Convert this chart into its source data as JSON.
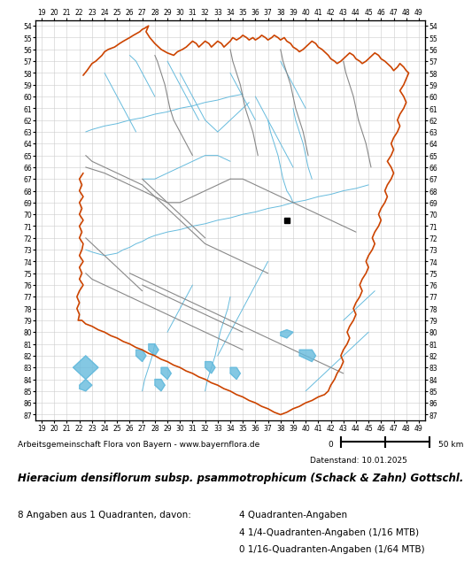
{
  "title": "Hieracium densiflorum subsp. psammotrophicum (Schack & Zahn) Gottschl.",
  "subtitle": "Datenstand: 10.01.2025",
  "footer_line1": "Arbeitsgemeinschaft Flora von Bayern - www.bayernflora.de",
  "footer_line2": "8 Angaben aus 1 Quadranten, davon:",
  "footer_line3": "4 Quadranten-Angaben",
  "footer_line4": "4 1/4-Quadranten-Angaben (1/16 MTB)",
  "footer_line5": "0 1/16-Quadranten-Angaben (1/64 MTB)",
  "scale_label": "0        50 km",
  "x_ticks": [
    19,
    20,
    21,
    22,
    23,
    24,
    25,
    26,
    27,
    28,
    29,
    30,
    31,
    32,
    33,
    34,
    35,
    36,
    37,
    38,
    39,
    40,
    41,
    42,
    43,
    44,
    45,
    46,
    47,
    48,
    49
  ],
  "y_ticks": [
    54,
    55,
    56,
    57,
    58,
    59,
    60,
    61,
    62,
    63,
    64,
    65,
    66,
    67,
    68,
    69,
    70,
    71,
    72,
    73,
    74,
    75,
    76,
    77,
    78,
    79,
    80,
    81,
    82,
    83,
    84,
    85,
    86,
    87
  ],
  "x_min": 19,
  "x_max": 49,
  "y_min": 54,
  "y_max": 87,
  "background_color": "#ffffff",
  "grid_color": "#cccccc",
  "outer_border_color": "#cc4400",
  "inner_border_color": "#888888",
  "river_color": "#66bbdd",
  "occurrence_color": "#00aadd",
  "marker_color": "#000000",
  "marker_x": 38.5,
  "marker_y": 70.5,
  "fig_width": 5.0,
  "fig_height": 6.2
}
